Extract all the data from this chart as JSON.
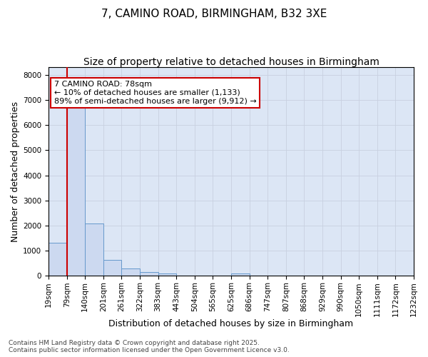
{
  "title_line1": "7, CAMINO ROAD, BIRMINGHAM, B32 3XE",
  "title_line2": "Size of property relative to detached houses in Birmingham",
  "xlabel": "Distribution of detached houses by size in Birmingham",
  "ylabel": "Number of detached properties",
  "bins": [
    "19sqm",
    "79sqm",
    "140sqm",
    "201sqm",
    "261sqm",
    "322sqm",
    "383sqm",
    "443sqm",
    "504sqm",
    "565sqm",
    "625sqm",
    "686sqm",
    "747sqm",
    "807sqm",
    "868sqm",
    "929sqm",
    "990sqm",
    "1050sqm",
    "1111sqm",
    "1172sqm",
    "1232sqm"
  ],
  "values": [
    1330,
    6670,
    2090,
    640,
    310,
    155,
    105,
    0,
    0,
    0,
    100,
    0,
    0,
    0,
    0,
    0,
    0,
    0,
    0,
    0
  ],
  "bar_color": "#ccd9f0",
  "bar_edge_color": "#6699cc",
  "grid_color": "#c8d0e0",
  "background_color": "#dce6f5",
  "figure_bg": "#ffffff",
  "vline_color": "#cc0000",
  "vline_x": 1,
  "annotation_text": "7 CAMINO ROAD: 78sqm\n← 10% of detached houses are smaller (1,133)\n89% of semi-detached houses are larger (9,912) →",
  "annotation_box_facecolor": "#ffffff",
  "annotation_box_edgecolor": "#cc0000",
  "ylim": [
    0,
    8300
  ],
  "yticks": [
    0,
    1000,
    2000,
    3000,
    4000,
    5000,
    6000,
    7000,
    8000
  ],
  "title_fontsize": 11,
  "subtitle_fontsize": 10,
  "label_fontsize": 9,
  "tick_fontsize": 7.5,
  "annotation_fontsize": 8,
  "footnote": "Contains HM Land Registry data © Crown copyright and database right 2025.\nContains public sector information licensed under the Open Government Licence v3.0.",
  "footnote_fontsize": 6.5
}
